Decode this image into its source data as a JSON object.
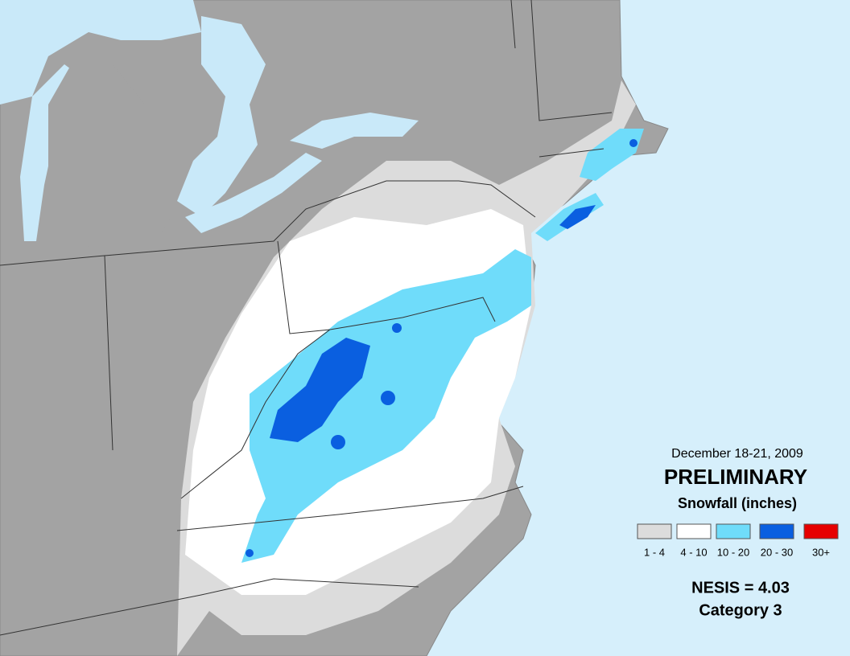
{
  "header": {
    "dates": "December 18-21, 2009",
    "status": "PRELIMINARY",
    "subtitle": "Snowfall (inches)"
  },
  "legend": {
    "items": [
      {
        "label": "1 - 4",
        "color": "#dcdcdc"
      },
      {
        "label": "4 - 10",
        "color": "#ffffff"
      },
      {
        "label": "10 - 20",
        "color": "#6fdcfa"
      },
      {
        "label": "20 - 30",
        "color": "#0a5fe0"
      },
      {
        "label": "30+",
        "color": "#e60000"
      }
    ]
  },
  "index": {
    "nesis": "NESIS = 4.03",
    "category": "Category 3"
  }
}
